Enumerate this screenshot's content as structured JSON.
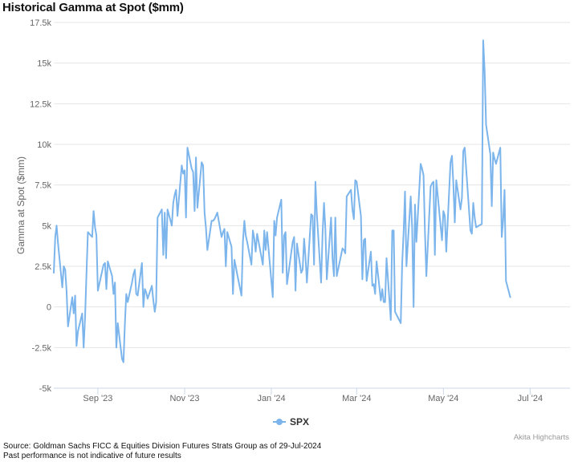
{
  "title": "Historical Gamma at Spot ($mm)",
  "footer": {
    "source": "Source: Goldman Sachs FICC & Equities Division Futures Strats Group as of 29-Jul-2024",
    "disclaimer": "Past performance is not indicative of future results"
  },
  "credits": "Akita Highcharts",
  "colors": {
    "series": "#7cb5ec",
    "grid": "#e6e6e6",
    "axis": "#ccd6eb"
  },
  "chart_data": {
    "type": "line",
    "title": "Historical Gamma at Spot ($mm)",
    "ylabel": "Gamma at Spot ($mm)",
    "xlabel": "",
    "ylim": [
      -5000,
      17500
    ],
    "y_ticks": [
      -5000,
      -2500,
      0,
      2500,
      5000,
      7500,
      10000,
      12500,
      15000,
      17500
    ],
    "y_tick_labels": [
      "-5k",
      "-2.5k",
      "0",
      "2.5k",
      "5k",
      "7.5k",
      "10k",
      "12.5k",
      "15k",
      "17.5k"
    ],
    "x_range": [
      "2023-08-01",
      "2024-07-29"
    ],
    "x_ticks": [
      "2023-09-01",
      "2023-11-01",
      "2024-01-01",
      "2024-03-01",
      "2024-05-01",
      "2024-07-01"
    ],
    "x_tick_labels": [
      "Sep '23",
      "Nov '23",
      "Jan '24",
      "Mar '24",
      "May '24",
      "Jul '24"
    ],
    "grid": true,
    "legend": "bottom-center",
    "series": [
      {
        "name": "SPX",
        "color": "#7cb5ec",
        "points": [
          [
            "2023-08-01",
            2100
          ],
          [
            "2023-08-02",
            4300
          ],
          [
            "2023-08-03",
            5000
          ],
          [
            "2023-08-04",
            3900
          ],
          [
            "2023-08-07",
            1200
          ],
          [
            "2023-08-08",
            2500
          ],
          [
            "2023-08-09",
            2300
          ],
          [
            "2023-08-10",
            1000
          ],
          [
            "2023-08-11",
            -1200
          ],
          [
            "2023-08-14",
            600
          ],
          [
            "2023-08-15",
            -400
          ],
          [
            "2023-08-16",
            700
          ],
          [
            "2023-08-17",
            -2400
          ],
          [
            "2023-08-18",
            -1500
          ],
          [
            "2023-08-21",
            -400
          ],
          [
            "2023-08-22",
            -2500
          ],
          [
            "2023-08-23",
            -600
          ],
          [
            "2023-08-24",
            2000
          ],
          [
            "2023-08-25",
            4600
          ],
          [
            "2023-08-28",
            4300
          ],
          [
            "2023-08-29",
            5900
          ],
          [
            "2023-08-30",
            4900
          ],
          [
            "2023-08-31",
            4400
          ],
          [
            "2023-09-01",
            1000
          ],
          [
            "2023-09-05",
            2600
          ],
          [
            "2023-09-06",
            2700
          ],
          [
            "2023-09-07",
            1100
          ],
          [
            "2023-09-08",
            2800
          ],
          [
            "2023-09-11",
            1900
          ],
          [
            "2023-09-12",
            800
          ],
          [
            "2023-09-13",
            1500
          ],
          [
            "2023-09-14",
            -2500
          ],
          [
            "2023-09-15",
            -1000
          ],
          [
            "2023-09-18",
            -3200
          ],
          [
            "2023-09-19",
            -3400
          ],
          [
            "2023-09-20",
            -1000
          ],
          [
            "2023-09-21",
            800
          ],
          [
            "2023-09-22",
            300
          ],
          [
            "2023-09-25",
            1500
          ],
          [
            "2023-09-26",
            2000
          ],
          [
            "2023-09-27",
            2300
          ],
          [
            "2023-09-28",
            800
          ],
          [
            "2023-09-29",
            700
          ],
          [
            "2023-10-02",
            2700
          ],
          [
            "2023-10-03",
            0
          ],
          [
            "2023-10-04",
            1100
          ],
          [
            "2023-10-05",
            900
          ],
          [
            "2023-10-06",
            500
          ],
          [
            "2023-10-09",
            1300
          ],
          [
            "2023-10-10",
            400
          ],
          [
            "2023-10-11",
            -300
          ],
          [
            "2023-10-12",
            300
          ],
          [
            "2023-10-13",
            5500
          ],
          [
            "2023-10-16",
            6000
          ],
          [
            "2023-10-17",
            3200
          ],
          [
            "2023-10-18",
            5800
          ],
          [
            "2023-10-19",
            3000
          ],
          [
            "2023-10-20",
            6000
          ],
          [
            "2023-10-23",
            5000
          ],
          [
            "2023-10-24",
            6400
          ],
          [
            "2023-10-25",
            6900
          ],
          [
            "2023-10-26",
            7200
          ],
          [
            "2023-10-27",
            5600
          ],
          [
            "2023-10-30",
            8700
          ],
          [
            "2023-10-31",
            8200
          ],
          [
            "2023-11-01",
            8400
          ],
          [
            "2023-11-02",
            5500
          ],
          [
            "2023-11-03",
            9800
          ],
          [
            "2023-11-06",
            8500
          ],
          [
            "2023-11-07",
            8300
          ],
          [
            "2023-11-08",
            5900
          ],
          [
            "2023-11-09",
            9200
          ],
          [
            "2023-11-10",
            6100
          ],
          [
            "2023-11-13",
            8900
          ],
          [
            "2023-11-14",
            8700
          ],
          [
            "2023-11-15",
            5800
          ],
          [
            "2023-11-16",
            4900
          ],
          [
            "2023-11-17",
            3500
          ],
          [
            "2023-11-20",
            5300
          ],
          [
            "2023-11-21",
            5300
          ],
          [
            "2023-11-22",
            5400
          ],
          [
            "2023-11-24",
            5800
          ],
          [
            "2023-11-27",
            4300
          ],
          [
            "2023-11-28",
            4600
          ],
          [
            "2023-11-29",
            4800
          ],
          [
            "2023-11-30",
            2500
          ],
          [
            "2023-12-01",
            4600
          ],
          [
            "2023-12-04",
            3700
          ],
          [
            "2023-12-05",
            800
          ],
          [
            "2023-12-06",
            2900
          ],
          [
            "2023-12-07",
            2500
          ],
          [
            "2023-12-08",
            2000
          ],
          [
            "2023-12-11",
            700
          ],
          [
            "2023-12-12",
            4000
          ],
          [
            "2023-12-13",
            5300
          ],
          [
            "2023-12-14",
            4400
          ],
          [
            "2023-12-15",
            4000
          ],
          [
            "2023-12-18",
            2600
          ],
          [
            "2023-12-19",
            4700
          ],
          [
            "2023-12-20",
            4200
          ],
          [
            "2023-12-21",
            3400
          ],
          [
            "2023-12-22",
            4500
          ],
          [
            "2023-12-26",
            2600
          ],
          [
            "2023-12-27",
            4700
          ],
          [
            "2023-12-28",
            3500
          ],
          [
            "2023-12-29",
            4600
          ],
          [
            "2024-01-02",
            600
          ],
          [
            "2024-01-03",
            5300
          ],
          [
            "2024-01-04",
            4400
          ],
          [
            "2024-01-05",
            5500
          ],
          [
            "2024-01-08",
            6600
          ],
          [
            "2024-01-09",
            2100
          ],
          [
            "2024-01-10",
            4400
          ],
          [
            "2024-01-11",
            4600
          ],
          [
            "2024-01-12",
            1400
          ],
          [
            "2024-01-16",
            4000
          ],
          [
            "2024-01-17",
            4300
          ],
          [
            "2024-01-18",
            1000
          ],
          [
            "2024-01-19",
            3900
          ],
          [
            "2024-01-22",
            2100
          ],
          [
            "2024-01-23",
            2300
          ],
          [
            "2024-01-24",
            4200
          ],
          [
            "2024-01-25",
            3100
          ],
          [
            "2024-01-26",
            1500
          ],
          [
            "2024-01-29",
            5700
          ],
          [
            "2024-01-30",
            5600
          ],
          [
            "2024-01-31",
            2600
          ],
          [
            "2024-02-01",
            7700
          ],
          [
            "2024-02-02",
            5700
          ],
          [
            "2024-02-05",
            1500
          ],
          [
            "2024-02-06",
            4500
          ],
          [
            "2024-02-07",
            6400
          ],
          [
            "2024-02-08",
            4800
          ],
          [
            "2024-02-09",
            1700
          ],
          [
            "2024-02-12",
            5500
          ],
          [
            "2024-02-13",
            3000
          ],
          [
            "2024-02-14",
            1900
          ],
          [
            "2024-02-15",
            5500
          ],
          [
            "2024-02-16",
            1900
          ],
          [
            "2024-02-20",
            3600
          ],
          [
            "2024-02-21",
            3500
          ],
          [
            "2024-02-22",
            3300
          ],
          [
            "2024-02-23",
            6800
          ],
          [
            "2024-02-26",
            7200
          ],
          [
            "2024-02-27",
            6000
          ],
          [
            "2024-02-28",
            5400
          ],
          [
            "2024-02-29",
            7800
          ],
          [
            "2024-03-01",
            7700
          ],
          [
            "2024-03-04",
            5600
          ],
          [
            "2024-03-05",
            1700
          ],
          [
            "2024-03-06",
            4100
          ],
          [
            "2024-03-07",
            4200
          ],
          [
            "2024-03-08",
            1600
          ],
          [
            "2024-03-11",
            3400
          ],
          [
            "2024-03-12",
            1300
          ],
          [
            "2024-03-13",
            1400
          ],
          [
            "2024-03-14",
            800
          ],
          [
            "2024-03-15",
            2800
          ],
          [
            "2024-03-18",
            400
          ],
          [
            "2024-03-19",
            1100
          ],
          [
            "2024-03-20",
            300
          ],
          [
            "2024-03-21",
            300
          ],
          [
            "2024-03-22",
            3000
          ],
          [
            "2024-03-25",
            -800
          ],
          [
            "2024-03-26",
            4700
          ],
          [
            "2024-03-27",
            4700
          ],
          [
            "2024-03-28",
            -300
          ],
          [
            "2024-04-01",
            -1000
          ],
          [
            "2024-04-02",
            2700
          ],
          [
            "2024-04-03",
            4600
          ],
          [
            "2024-04-04",
            7100
          ],
          [
            "2024-04-05",
            2500
          ],
          [
            "2024-04-08",
            6800
          ],
          [
            "2024-04-09",
            4900
          ],
          [
            "2024-04-10",
            0
          ],
          [
            "2024-04-11",
            6300
          ],
          [
            "2024-04-12",
            4000
          ],
          [
            "2024-04-15",
            8800
          ],
          [
            "2024-04-16",
            8500
          ],
          [
            "2024-04-17",
            8100
          ],
          [
            "2024-04-18",
            4700
          ],
          [
            "2024-04-19",
            1900
          ],
          [
            "2024-04-22",
            7400
          ],
          [
            "2024-04-23",
            7600
          ],
          [
            "2024-04-24",
            7700
          ],
          [
            "2024-04-25",
            3200
          ],
          [
            "2024-04-26",
            7800
          ],
          [
            "2024-04-29",
            5000
          ],
          [
            "2024-04-30",
            4100
          ],
          [
            "2024-05-01",
            5900
          ],
          [
            "2024-05-02",
            5600
          ],
          [
            "2024-05-03",
            3400
          ],
          [
            "2024-05-06",
            8900
          ],
          [
            "2024-05-07",
            9300
          ],
          [
            "2024-05-08",
            7600
          ],
          [
            "2024-05-09",
            5200
          ],
          [
            "2024-05-10",
            7800
          ],
          [
            "2024-05-13",
            6000
          ],
          [
            "2024-05-14",
            6700
          ],
          [
            "2024-05-15",
            9600
          ],
          [
            "2024-05-16",
            9800
          ],
          [
            "2024-05-17",
            8500
          ],
          [
            "2024-05-20",
            4700
          ],
          [
            "2024-05-21",
            4500
          ],
          [
            "2024-05-22",
            6400
          ],
          [
            "2024-05-23",
            5500
          ],
          [
            "2024-05-24",
            4900
          ],
          [
            "2024-05-28",
            5100
          ],
          [
            "2024-05-29",
            16400
          ],
          [
            "2024-05-30",
            14500
          ],
          [
            "2024-05-31",
            11200
          ],
          [
            "2024-06-03",
            9400
          ],
          [
            "2024-06-04",
            6200
          ],
          [
            "2024-06-05",
            9500
          ],
          [
            "2024-06-06",
            9100
          ],
          [
            "2024-06-07",
            8800
          ],
          [
            "2024-06-10",
            9800
          ],
          [
            "2024-06-11",
            4300
          ],
          [
            "2024-06-12",
            5300
          ],
          [
            "2024-06-13",
            7200
          ],
          [
            "2024-06-14",
            1600
          ],
          [
            "2024-06-17",
            600
          ]
        ]
      }
    ]
  }
}
